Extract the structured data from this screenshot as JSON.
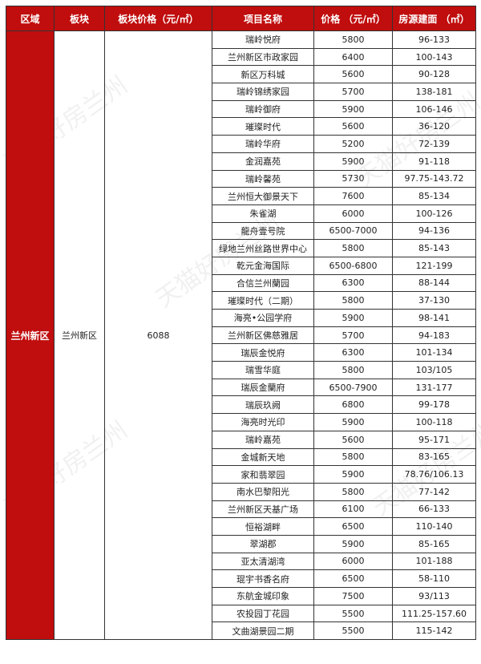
{
  "watermark": "天猫好房兰州",
  "headers": [
    "区域",
    "板块",
    "板块价格（元/㎡）",
    "项目名称",
    "价格 （元/㎡）",
    "房源建面 （㎡）"
  ],
  "region": "兰州新区",
  "block": "兰州新区",
  "block_price": "6088",
  "rows": [
    [
      "瑞岭悦府",
      "5800",
      "96-133"
    ],
    [
      "兰州新区市政家园",
      "6400",
      "100-143"
    ],
    [
      "新区万科城",
      "5600",
      "90-128"
    ],
    [
      "瑞岭锦绣家园",
      "5700",
      "138-181"
    ],
    [
      "瑞岭御府",
      "5900",
      "106-146"
    ],
    [
      "璀璨时代",
      "5600",
      "36-120"
    ],
    [
      "瑞岭华府",
      "5200",
      "72-139"
    ],
    [
      "金润嘉苑",
      "5900",
      "91-118"
    ],
    [
      "瑞岭馨苑",
      "5730",
      "97.75-143.72"
    ],
    [
      "兰州恒大御景天下",
      "7600",
      "85-134"
    ],
    [
      "朱雀湖",
      "6000",
      "100-126"
    ],
    [
      "龍舟壹号院",
      "6500-7000",
      "94-136"
    ],
    [
      "绿地兰州丝路世界中心",
      "5800",
      "85-143"
    ],
    [
      "乾元金海国际",
      "6500-6800",
      "121-199"
    ],
    [
      "合信兰州蘭园",
      "6300",
      "88-144"
    ],
    [
      "璀璨时代（二期）",
      "5800",
      "37-130"
    ],
    [
      "海亮•公园学府",
      "5900",
      "98-141"
    ],
    [
      "兰州新区佛慈雅居",
      "5700",
      "94-183"
    ],
    [
      "瑞辰金悦府",
      "6300",
      "101-134"
    ],
    [
      "瑞雪华庭",
      "5800",
      "103/105"
    ],
    [
      "瑞辰金蘭府",
      "6500-7900",
      "131-177"
    ],
    [
      "瑞辰玖阙",
      "6800",
      "99-178"
    ],
    [
      "海亮时光印",
      "5900",
      "100-118"
    ],
    [
      "瑞岭嘉苑",
      "5600",
      "95-171"
    ],
    [
      "金城新天地",
      "5800",
      "83-165"
    ],
    [
      "家和翡翠园",
      "5900",
      "78.76/106.13"
    ],
    [
      "南水巴黎阳光",
      "5800",
      "77-142"
    ],
    [
      "兰州新区天基广场",
      "6100",
      "66-133"
    ],
    [
      "恒裕湖畔",
      "6500",
      "110-140"
    ],
    [
      "翠湖郡",
      "5900",
      "85-165"
    ],
    [
      "亚太清湖湾",
      "6000",
      "101-188"
    ],
    [
      "琨宇书香名府",
      "6500",
      "58-110"
    ],
    [
      "东航金城印象",
      "7500",
      "93/113"
    ],
    [
      "农投园丁花园",
      "5500",
      "111.25-157.60"
    ],
    [
      "文曲湖景园二期",
      "5500",
      "115-142"
    ]
  ],
  "colors": {
    "header_bg": "#c00d0d",
    "header_text": "#ffffff"
  }
}
